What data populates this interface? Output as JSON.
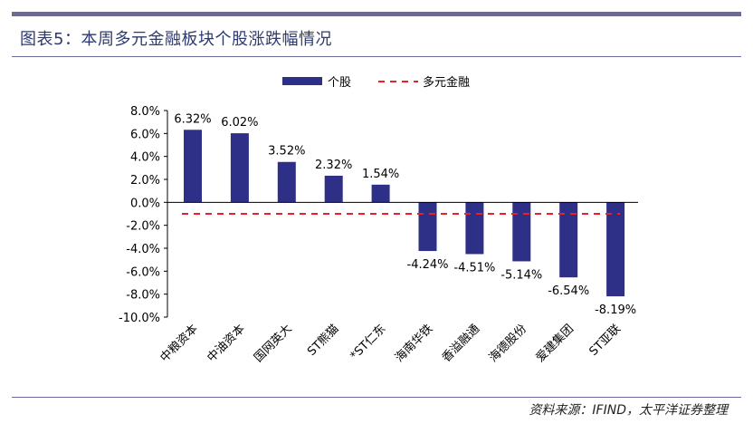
{
  "title": "图表5：本周多元金融板块个股涨跌幅情况",
  "source": "资料来源：IFIND，太平洋证券整理",
  "colors": {
    "bar": "#2e3088",
    "line": "#e8202a",
    "rule": "#6b6b9b"
  },
  "chart_data": {
    "type": "bar",
    "categories": [
      "中粮资本",
      "中油资本",
      "国网英大",
      "ST熊猫",
      "*ST仁东",
      "海南华铁",
      "香溢融通",
      "海德股份",
      "爱建集团",
      "ST亚联"
    ],
    "series": [
      {
        "name": "个股",
        "type": "bar",
        "values": [
          6.32,
          6.02,
          3.52,
          2.32,
          1.54,
          -4.24,
          -4.51,
          -5.14,
          -6.54,
          -8.19
        ]
      },
      {
        "name": "多元金融",
        "type": "line",
        "style": "dashed",
        "values": [
          -1.0,
          -1.0,
          -1.0,
          -1.0,
          -1.0,
          -1.0,
          -1.0,
          -1.0,
          -1.0,
          -1.0
        ]
      }
    ],
    "data_labels": [
      "6.32%",
      "6.02%",
      "3.52%",
      "2.32%",
      "1.54%",
      "-4.24%",
      "-4.51%",
      "-5.14%",
      "-6.54%",
      "-8.19%"
    ],
    "yticks": [
      "8.0%",
      "6.0%",
      "4.0%",
      "2.0%",
      "0.0%",
      "-2.0%",
      "-4.0%",
      "-6.0%",
      "-8.0%",
      "-10.0%"
    ],
    "ylim": [
      -10,
      8
    ],
    "grid": false,
    "legend": "top-center"
  }
}
